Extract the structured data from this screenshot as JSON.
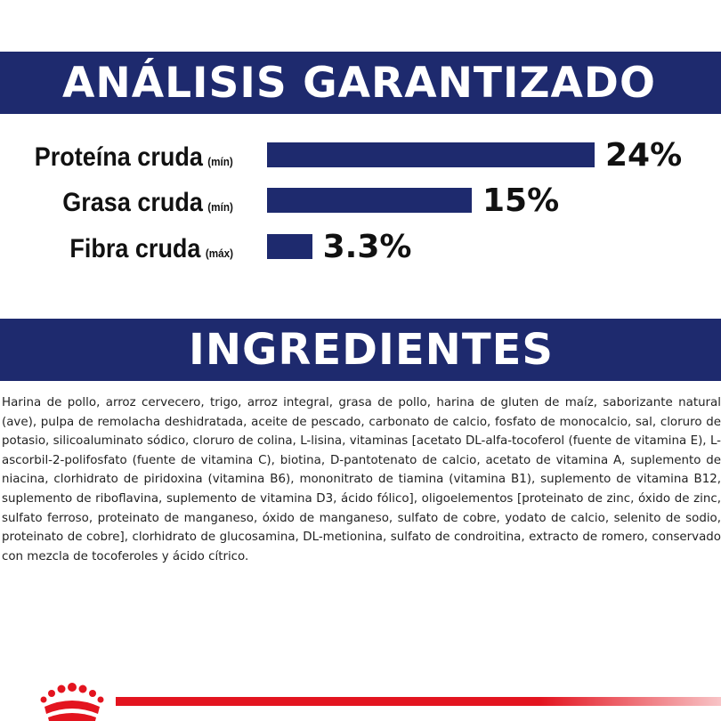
{
  "analysis": {
    "title": "ANÁLISIS GARANTIZADO",
    "nutrients": [
      {
        "label": "Proteína cruda",
        "qualifier": "(mín)",
        "value": "24%",
        "percent": 24
      },
      {
        "label": "Grasa cruda",
        "qualifier": "(mín)",
        "value": "15%",
        "percent": 15
      },
      {
        "label": "Fibra cruda",
        "qualifier": "(máx)",
        "value": "3.3%",
        "percent": 3.3
      }
    ]
  },
  "ingredients": {
    "title": "INGREDIENTES",
    "text": "Harina de pollo, arroz cervecero, trigo, arroz integral, grasa de pollo, harina de gluten de maíz, saborizante natural (ave), pulpa de remolacha deshidratada, aceite de pescado, carbonato de calcio, fosfato de monocalcio, sal, cloruro de potasio, silicoaluminato sódico, cloruro de colina, L-lisina, vitaminas [acetato DL-alfa-tocoferol (fuente de vitamina E), L-ascorbil-2-polifosfato (fuente de vitamina C), biotina, D-pantotenato de calcio, acetato de vitamina A, suplemento de niacina, clorhidrato de piridoxina (vitamina B6), mononitrato de tiamina (vitamina B1), suplemento de vitamina B12, suplemento de riboflavina, suplemento de vitamina D3, ácido fólico], oligoelementos [proteinato de zinc, óxido de zinc, sulfato ferroso, proteinato de manganeso, óxido de manganeso, sulfato de cobre, yodato de calcio, selenito de sodio, proteinato de cobre], clorhidrato de glucosamina, DL-metionina, sulfato de condroitina, extracto de romero, conservado con mezcla de tocoferoles y ácido cítrico."
  },
  "colors": {
    "banner": "#1e2a6e",
    "bar": "#1e2a6e",
    "brand_red": "#e3141f"
  },
  "footer": {
    "logo_icon": "crown-icon"
  }
}
